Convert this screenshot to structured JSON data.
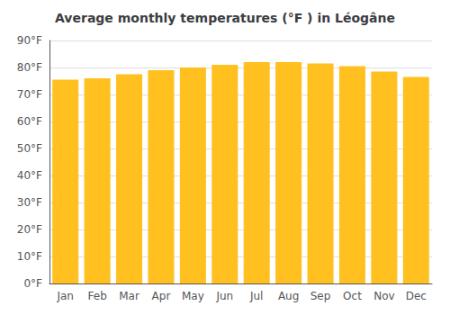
{
  "chart_data": {
    "type": "bar",
    "title": "Average monthly temperatures (°F ) in Léogâne",
    "categories": [
      "Jan",
      "Feb",
      "Mar",
      "Apr",
      "May",
      "Jun",
      "Jul",
      "Aug",
      "Sep",
      "Oct",
      "Nov",
      "Dec"
    ],
    "values": [
      75.5,
      76.0,
      77.5,
      79.0,
      80.0,
      81.0,
      82.0,
      82.0,
      81.5,
      80.5,
      78.5,
      76.5
    ],
    "color": "#FFC020",
    "ylim": [
      0,
      90
    ],
    "yticks": [
      {
        "value": 0,
        "label": "0°F"
      },
      {
        "value": 10,
        "label": "10°F"
      },
      {
        "value": 20,
        "label": "20°F"
      },
      {
        "value": 30,
        "label": "30°F"
      },
      {
        "value": 40,
        "label": "40°F"
      },
      {
        "value": 50,
        "label": "50°F"
      },
      {
        "value": 60,
        "label": "60°F"
      },
      {
        "value": 70,
        "label": "70°F"
      },
      {
        "value": 80,
        "label": "80°F"
      },
      {
        "value": 90,
        "label": "90°F"
      }
    ],
    "grid": true
  }
}
